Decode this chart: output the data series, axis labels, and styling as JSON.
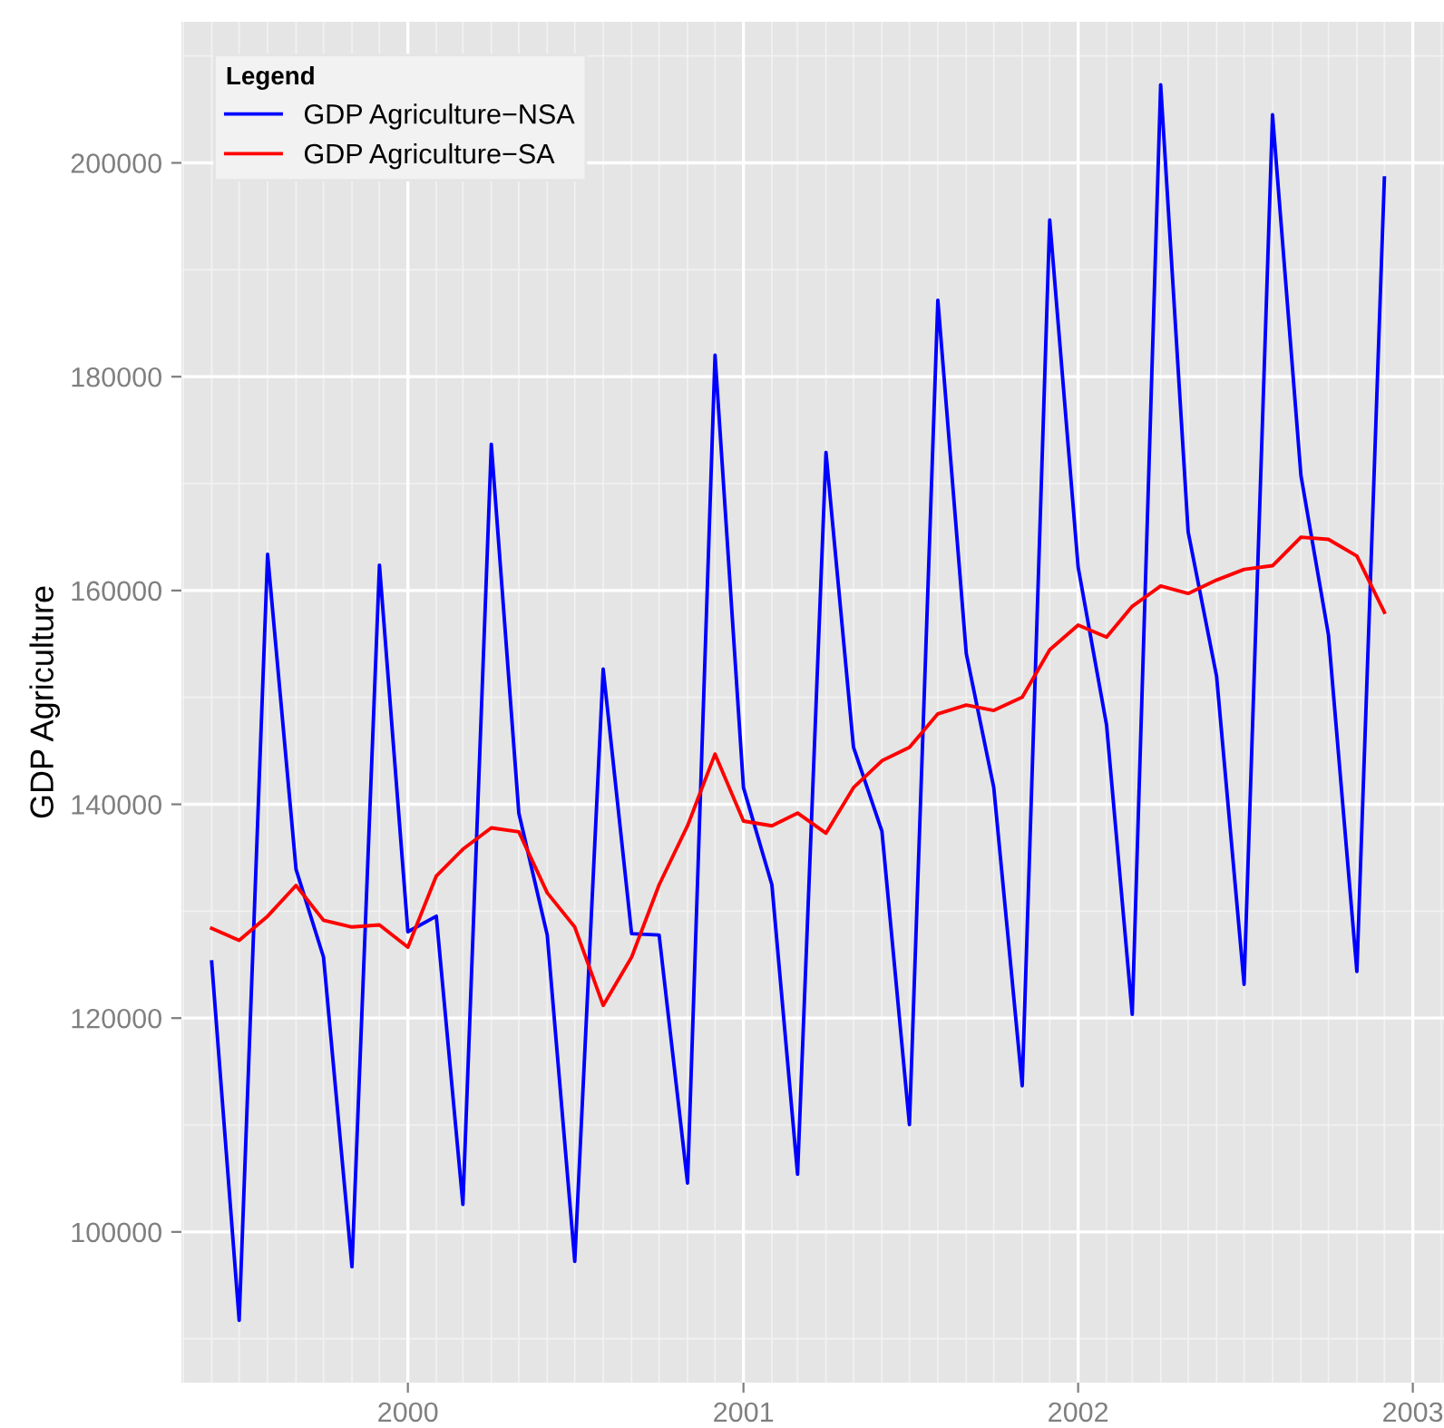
{
  "chart_data": {
    "type": "line",
    "ylabel": "GDP Agriculture",
    "legend_title": "Legend",
    "x": [
      "1999-06",
      "1999-07",
      "1999-08",
      "1999-09",
      "1999-10",
      "1999-11",
      "1999-12",
      "2000-01",
      "2000-02",
      "2000-03",
      "2000-04",
      "2000-05",
      "2000-06",
      "2000-07",
      "2000-08",
      "2000-09",
      "2000-10",
      "2000-11",
      "2000-12",
      "2001-01",
      "2001-02",
      "2001-03",
      "2001-04",
      "2001-05",
      "2001-06",
      "2001-07",
      "2001-08",
      "2001-09",
      "2001-10",
      "2001-11",
      "2001-12",
      "2002-01",
      "2002-02",
      "2002-03",
      "2002-04",
      "2002-05",
      "2002-06",
      "2002-07",
      "2002-08",
      "2002-09",
      "2002-10",
      "2002-11",
      "2002-12"
    ],
    "series": [
      {
        "name": "GDP Agriculture−NSA",
        "color": "#0000ff",
        "values": [
          125260,
          91720,
          163380,
          133920,
          125700,
          96730,
          162380,
          128080,
          129530,
          102570,
          173670,
          139180,
          127770,
          97240,
          152660,
          127900,
          127770,
          104570,
          182010,
          141560,
          132470,
          105390,
          172910,
          145330,
          137490,
          110030,
          187150,
          154100,
          141560,
          113670,
          194660,
          162180,
          147420,
          120350,
          207310,
          165480,
          151980,
          123160,
          204500,
          170750,
          155850,
          124360,
          198590
        ]
      },
      {
        "name": "GDP Agriculture−SA",
        "color": "#ff0000",
        "values": [
          128400,
          127270,
          129530,
          132410,
          129150,
          128520,
          128710,
          126640,
          133290,
          135800,
          137800,
          137420,
          131720,
          128520,
          121190,
          125700,
          132470,
          137990,
          144700,
          138430,
          137990,
          139180,
          137300,
          141560,
          144070,
          145330,
          148460,
          149280,
          148780,
          150020,
          154450,
          156770,
          155640,
          158520,
          160420,
          159720,
          160980,
          161970,
          162320,
          164990,
          164780,
          163230,
          157960
        ]
      }
    ],
    "xlim": [
      "1999-04-29",
      "2003-02-06"
    ],
    "xticks": [
      {
        "value": "2000-01-01",
        "label": "2000"
      },
      {
        "value": "2001-01-01",
        "label": "2001"
      },
      {
        "value": "2002-01-01",
        "label": "2002"
      },
      {
        "value": "2003-01-01",
        "label": "2003"
      }
    ],
    "ylim": [
      85900,
      213200
    ],
    "yticks": [
      100000,
      120000,
      140000,
      160000,
      180000,
      200000
    ],
    "grid": true,
    "legend": "top left",
    "line_style": "solid",
    "marker": "none"
  }
}
